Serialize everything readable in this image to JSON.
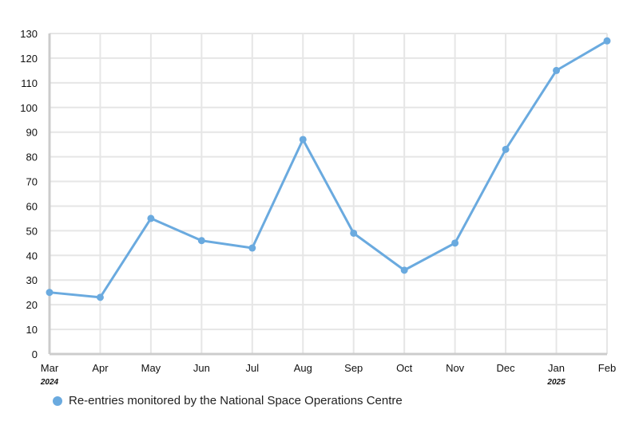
{
  "chart_data": {
    "type": "line",
    "categories": [
      "Mar",
      "Apr",
      "May",
      "Jun",
      "Jul",
      "Aug",
      "Sep",
      "Oct",
      "Nov",
      "Dec",
      "Jan",
      "Feb"
    ],
    "year_labels": [
      {
        "category": "Mar",
        "label": "2024"
      },
      {
        "category": "Jan",
        "label": "2025"
      }
    ],
    "series": [
      {
        "name": "Re-entries monitored by the National Space Operations Centre",
        "color": "#6aaadf",
        "values": [
          25,
          23,
          55,
          46,
          43,
          87,
          49,
          34,
          45,
          83,
          115,
          127
        ]
      }
    ],
    "yticks": [
      0,
      10,
      20,
      30,
      40,
      50,
      60,
      70,
      80,
      90,
      100,
      110,
      120,
      130
    ],
    "ylim": [
      0,
      130
    ],
    "grid": true,
    "legend_position": "bottom-left",
    "title": "",
    "xlabel": "",
    "ylabel": ""
  }
}
